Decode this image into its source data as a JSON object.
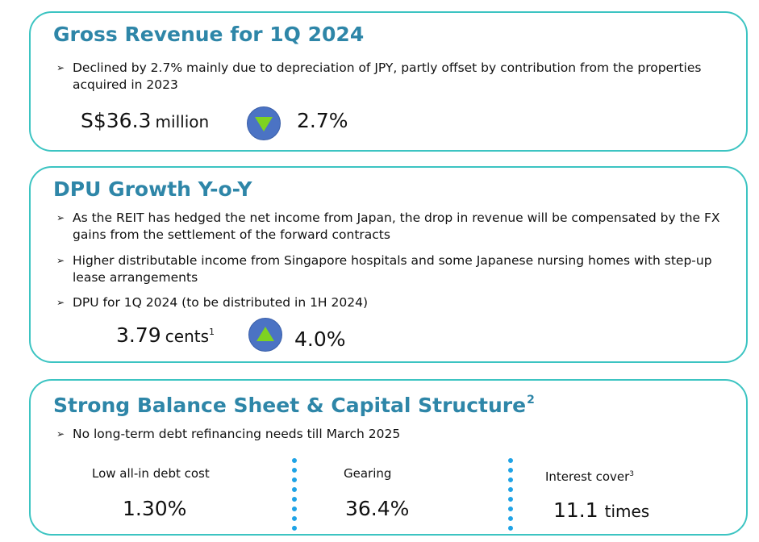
{
  "revenue": {
    "title": "Gross Revenue for 1Q 2024",
    "bullet": "Declined by 2.7% mainly due to depreciation of JPY, partly offset by contribution from the properties acquired in 2023",
    "amount": "S$36.3",
    "amount_unit": "million",
    "change": "2.7%",
    "change_direction": "down"
  },
  "dpu": {
    "title": "DPU Growth Y-o-Y",
    "bullets": [
      "As the REIT has hedged the net income from Japan, the drop in revenue will be compensated by the FX gains from the settlement of the forward contracts",
      "Higher distributable income from Singapore hospitals and some Japanese nursing homes with step-up lease arrangements",
      "DPU for 1Q 2024 (to be distributed in 1H 2024)"
    ],
    "amount": "3.79",
    "amount_unit": "cents",
    "amount_footnote": "1",
    "change": "4.0%",
    "change_direction": "up"
  },
  "balance": {
    "title": "Strong Balance Sheet & Capital Structure",
    "title_footnote": "2",
    "bullet": "No long-term debt refinancing needs till March 2025",
    "metrics": [
      {
        "label": "Low all-in debt cost",
        "footnote": "",
        "value": "1.30%",
        "unit": ""
      },
      {
        "label": "Gearing",
        "footnote": "",
        "value": "36.4%",
        "unit": ""
      },
      {
        "label": "Interest cover",
        "footnote": "3",
        "value": "11.1",
        "unit": "times"
      }
    ]
  },
  "colors": {
    "card_border": "#3cc4c2",
    "title_text": "#2e86a8",
    "circle_fill": "#4b73c4",
    "arrow_green": "#7ed321",
    "divider_blue": "#1fa3e6"
  },
  "icons": {
    "bullet": "chevron-right-arrow-icon",
    "change_down": "triangle-down-icon",
    "change_up": "triangle-up-icon"
  }
}
